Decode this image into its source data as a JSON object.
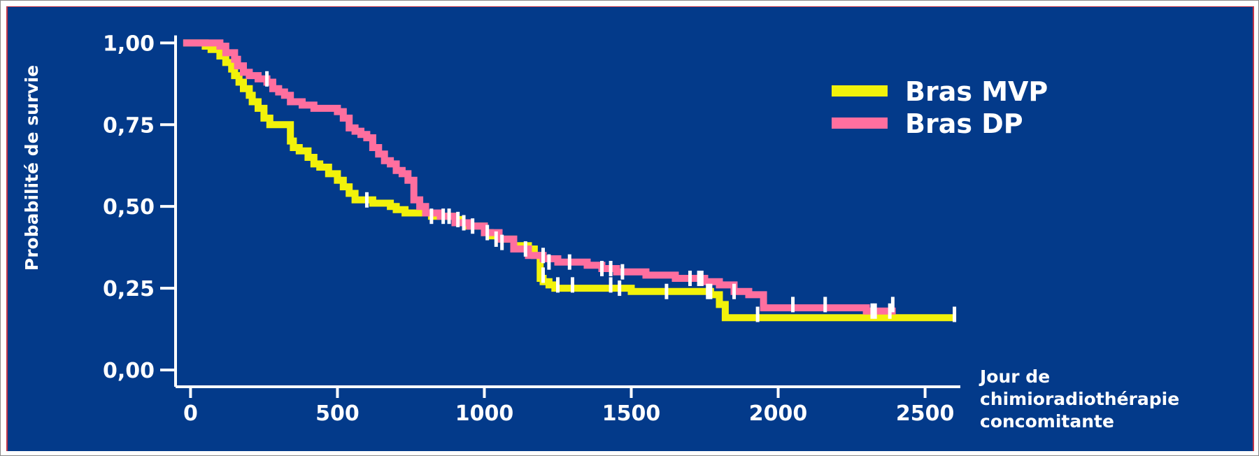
{
  "chart_data": {
    "type": "line",
    "subtype": "kaplan-meier",
    "title": "",
    "ylabel": "Probabilité de survie",
    "xlabel_lines": [
      "Jour de",
      "chimioradiothérapie",
      "concomitante"
    ],
    "xlim": [
      -70,
      2620
    ],
    "ylim": [
      -0.03,
      1.02
    ],
    "x_ticks": [
      0,
      500,
      1000,
      1500,
      2000,
      2500
    ],
    "x_tick_labels": [
      "0",
      "500",
      "1000",
      "1500",
      "2000",
      "2500"
    ],
    "y_ticks": [
      0,
      0.25,
      0.5,
      0.75,
      1
    ],
    "y_tick_labels": [
      "0,00",
      "0,25",
      "0,50",
      "0,75",
      "1,00"
    ],
    "legend_position": "top-right",
    "background_color": "#033a8a",
    "axis_color": "#ffffff",
    "censor_color": "#ffffff",
    "series": [
      {
        "name": "Bras MVP",
        "color": "#f2f20a",
        "x": [
          -25,
          30,
          50,
          70,
          100,
          120,
          140,
          150,
          165,
          180,
          200,
          210,
          230,
          250,
          270,
          300,
          330,
          340,
          350,
          370,
          400,
          420,
          440,
          470,
          500,
          520,
          540,
          560,
          580,
          620,
          680,
          700,
          730,
          780,
          800,
          820,
          850,
          880,
          900,
          920,
          940,
          1000,
          1020,
          1050,
          1100,
          1150,
          1170,
          1190,
          1200,
          1220,
          1240,
          1300,
          1400,
          1450,
          1500,
          1550,
          1600,
          1700,
          1750,
          1770,
          1800,
          1820,
          2200,
          2600
        ],
        "y": [
          1,
          1,
          0.99,
          0.98,
          0.96,
          0.94,
          0.92,
          0.9,
          0.88,
          0.86,
          0.84,
          0.82,
          0.8,
          0.77,
          0.75,
          0.75,
          0.75,
          0.7,
          0.68,
          0.67,
          0.65,
          0.63,
          0.62,
          0.6,
          0.58,
          0.56,
          0.54,
          0.52,
          0.52,
          0.51,
          0.5,
          0.49,
          0.48,
          0.48,
          0.48,
          0.47,
          0.47,
          0.47,
          0.46,
          0.45,
          0.44,
          0.42,
          0.41,
          0.4,
          0.38,
          0.37,
          0.35,
          0.28,
          0.27,
          0.26,
          0.25,
          0.25,
          0.25,
          0.25,
          0.24,
          0.24,
          0.24,
          0.24,
          0.24,
          0.23,
          0.2,
          0.16,
          0.16,
          0.16
        ]
      },
      {
        "name": "Bras DP",
        "color": "#ff6f9f",
        "x": [
          -25,
          40,
          90,
          100,
          120,
          150,
          160,
          180,
          200,
          230,
          260,
          280,
          300,
          320,
          340,
          360,
          380,
          400,
          420,
          440,
          460,
          480,
          500,
          520,
          540,
          560,
          580,
          600,
          620,
          640,
          660,
          680,
          700,
          720,
          740,
          760,
          780,
          800,
          850,
          900,
          950,
          1000,
          1050,
          1100,
          1150,
          1200,
          1250,
          1300,
          1350,
          1400,
          1450,
          1500,
          1550,
          1600,
          1650,
          1700,
          1750,
          1800,
          1850,
          1900,
          1920,
          1950,
          2100,
          2300,
          2400
        ],
        "y": [
          1,
          1,
          1,
          0.99,
          0.97,
          0.95,
          0.93,
          0.91,
          0.9,
          0.89,
          0.88,
          0.86,
          0.85,
          0.84,
          0.82,
          0.82,
          0.81,
          0.81,
          0.8,
          0.8,
          0.8,
          0.8,
          0.79,
          0.77,
          0.74,
          0.73,
          0.72,
          0.71,
          0.68,
          0.66,
          0.64,
          0.63,
          0.61,
          0.6,
          0.58,
          0.52,
          0.5,
          0.48,
          0.47,
          0.45,
          0.44,
          0.42,
          0.4,
          0.37,
          0.35,
          0.34,
          0.33,
          0.33,
          0.32,
          0.31,
          0.3,
          0.3,
          0.29,
          0.29,
          0.28,
          0.28,
          0.27,
          0.26,
          0.24,
          0.23,
          0.23,
          0.19,
          0.19,
          0.18,
          0.18
        ]
      }
    ],
    "censor_marks": [
      {
        "x": 260,
        "y": 0.89
      },
      {
        "x": 600,
        "y": 0.52
      },
      {
        "x": 820,
        "y": 0.47
      },
      {
        "x": 860,
        "y": 0.47
      },
      {
        "x": 880,
        "y": 0.47
      },
      {
        "x": 910,
        "y": 0.46
      },
      {
        "x": 930,
        "y": 0.45
      },
      {
        "x": 960,
        "y": 0.44
      },
      {
        "x": 1010,
        "y": 0.42
      },
      {
        "x": 1040,
        "y": 0.4
      },
      {
        "x": 1060,
        "y": 0.39
      },
      {
        "x": 1140,
        "y": 0.37
      },
      {
        "x": 1200,
        "y": 0.35
      },
      {
        "x": 1220,
        "y": 0.33
      },
      {
        "x": 1290,
        "y": 0.33
      },
      {
        "x": 1400,
        "y": 0.31
      },
      {
        "x": 1430,
        "y": 0.31
      },
      {
        "x": 1470,
        "y": 0.3
      },
      {
        "x": 1700,
        "y": 0.28
      },
      {
        "x": 1730,
        "y": 0.28
      },
      {
        "x": 1740,
        "y": 0.28
      },
      {
        "x": 1760,
        "y": 0.24
      },
      {
        "x": 1770,
        "y": 0.24
      },
      {
        "x": 1850,
        "y": 0.24
      },
      {
        "x": 2050,
        "y": 0.2
      },
      {
        "x": 2160,
        "y": 0.2
      },
      {
        "x": 2320,
        "y": 0.18
      },
      {
        "x": 2330,
        "y": 0.18
      },
      {
        "x": 2380,
        "y": 0.18
      },
      {
        "x": 2390,
        "y": 0.2
      },
      {
        "x": 1200,
        "y": 0.29
      },
      {
        "x": 1250,
        "y": 0.26
      },
      {
        "x": 1300,
        "y": 0.26
      },
      {
        "x": 1430,
        "y": 0.26
      },
      {
        "x": 1460,
        "y": 0.25
      },
      {
        "x": 1620,
        "y": 0.24
      },
      {
        "x": 1930,
        "y": 0.17
      },
      {
        "x": 2600,
        "y": 0.17
      }
    ]
  }
}
